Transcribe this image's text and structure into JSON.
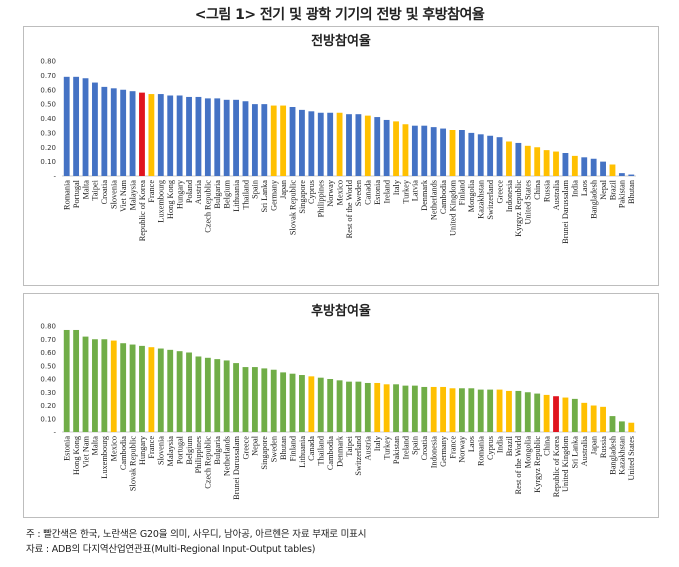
{
  "figure_title": "<그림 1> 전기 및 광학 기기의 전방 및 후방참여율",
  "colors": {
    "default": "#4472C4",
    "korea": "#E0141E",
    "g20": "#FFC000",
    "backward": "#70AD47"
  },
  "chart_data": [
    {
      "type": "bar",
      "title": "전방참여율",
      "ylim": [
        0,
        0.8
      ],
      "yticks": [
        "-",
        "0.10",
        "0.20",
        "0.30",
        "0.40",
        "0.50",
        "0.60",
        "0.70",
        "0.80"
      ],
      "categories": [
        "Romania",
        "Portugal",
        "Malta",
        "Taipei",
        "Croatia",
        "Slovenia",
        "Viet Nam",
        "Malaysia",
        "Republic of Korea",
        "France",
        "Luxembourg",
        "Hong Kong",
        "Hungary",
        "Poland",
        "Austria",
        "Czech Republic",
        "Bulgaria",
        "Belgium",
        "Lithuania",
        "Thailand",
        "Spain",
        "Sri Lanka",
        "Germany",
        "Japan",
        "Slovak Republic",
        "Singapore",
        "Cyprus",
        "Philippines",
        "Norway",
        "Mexico",
        "Rest of the World",
        "Sweden",
        "Canada",
        "Estonia",
        "Ireland",
        "Italy",
        "Turkey",
        "Latvia",
        "Denmark",
        "Netherlands",
        "Cambodia",
        "United Kingdom",
        "Finland",
        "Mongolia",
        "Kazakhstan",
        "Switzerland",
        "Greece",
        "Indonesia",
        "Kyrgyz Republic",
        "United States",
        "China",
        "Russia",
        "Australia",
        "Brunei Darussalam",
        "India",
        "Laos",
        "Bangladesh",
        "Nepal",
        "Brazil",
        "Pakistan",
        "Bhutan"
      ],
      "values": [
        0.69,
        0.69,
        0.68,
        0.65,
        0.62,
        0.61,
        0.6,
        0.59,
        0.58,
        0.57,
        0.57,
        0.56,
        0.56,
        0.55,
        0.55,
        0.54,
        0.54,
        0.53,
        0.53,
        0.52,
        0.5,
        0.5,
        0.49,
        0.49,
        0.48,
        0.46,
        0.45,
        0.44,
        0.44,
        0.44,
        0.43,
        0.43,
        0.42,
        0.41,
        0.39,
        0.38,
        0.36,
        0.35,
        0.35,
        0.34,
        0.33,
        0.32,
        0.32,
        0.3,
        0.29,
        0.28,
        0.27,
        0.24,
        0.23,
        0.21,
        0.2,
        0.18,
        0.17,
        0.16,
        0.14,
        0.13,
        0.12,
        0.1,
        0.08,
        0.02,
        0.01
      ],
      "highlight_korea": [
        "Republic of Korea"
      ],
      "highlight_g20": [
        "France",
        "Germany",
        "Japan",
        "Mexico",
        "Canada",
        "Italy",
        "Turkey",
        "United Kingdom",
        "Indonesia",
        "United States",
        "China",
        "Russia",
        "Australia",
        "India",
        "Brazil"
      ]
    },
    {
      "type": "bar",
      "title": "후방참여율",
      "ylim": [
        0,
        0.8
      ],
      "yticks": [
        "-",
        "0.10",
        "0.20",
        "0.30",
        "0.40",
        "0.50",
        "0.60",
        "0.70",
        "0.80"
      ],
      "categories": [
        "Estonia",
        "Hong Kong",
        "Viet Nam",
        "Malta",
        "Luxembourg",
        "Mexico",
        "Cambodia",
        "Slovak Republic",
        "Hungary",
        "France",
        "Slovenia",
        "Malaysia",
        "Portugal",
        "Belgium",
        "Philippines",
        "Czech Republic",
        "Bulgaria",
        "Netherlands",
        "Brunei Darussalam",
        "Greece",
        "Nepal",
        "Singapore",
        "Sweden",
        "Bhutan",
        "Finland",
        "Lithuania",
        "Canada",
        "Thailand",
        "Cambodia",
        "Denmark",
        "Taipei",
        "Switzerland",
        "Austria",
        "Italy",
        "Turkey",
        "Pakistan",
        "Ireland",
        "Spain",
        "Croatia",
        "Indonesia",
        "Germany",
        "France",
        "Norway",
        "Laos",
        "Romania",
        "Cyprus",
        "India",
        "Brazil",
        "Rest of the World",
        "Mongolia",
        "Kyrgyz Republic",
        "China",
        "Republic of Korea",
        "United Kingdom",
        "Sri Lanka",
        "Australia",
        "Japan",
        "Russia",
        "Bangladesh",
        "Kazakhstan",
        "United States"
      ],
      "values": [
        0.77,
        0.77,
        0.72,
        0.7,
        0.7,
        0.69,
        0.67,
        0.66,
        0.65,
        0.64,
        0.63,
        0.62,
        0.61,
        0.6,
        0.57,
        0.56,
        0.55,
        0.54,
        0.52,
        0.49,
        0.49,
        0.48,
        0.47,
        0.45,
        0.44,
        0.43,
        0.42,
        0.41,
        0.4,
        0.39,
        0.38,
        0.38,
        0.37,
        0.37,
        0.36,
        0.36,
        0.35,
        0.35,
        0.34,
        0.34,
        0.34,
        0.33,
        0.33,
        0.33,
        0.32,
        0.32,
        0.32,
        0.31,
        0.31,
        0.3,
        0.29,
        0.28,
        0.27,
        0.26,
        0.25,
        0.22,
        0.2,
        0.19,
        0.12,
        0.08,
        0.07
      ],
      "highlight_korea": [
        "Republic of Korea"
      ],
      "highlight_g20": [
        "Mexico",
        "France",
        "Canada",
        "Italy",
        "Turkey",
        "Indonesia",
        "Germany",
        "India",
        "Brazil",
        "China",
        "United Kingdom",
        "Australia",
        "Japan",
        "Russia",
        "United States"
      ]
    }
  ],
  "notes": {
    "line1": "주 : 빨간색은 한국, 노란색은 G20을 의미, 사우디, 남아공, 아르헨은 자료 부재로 미표시",
    "line2": "자료 : ADB의 다지역산업연관표(Multi-Regional Input-Output tables)"
  }
}
